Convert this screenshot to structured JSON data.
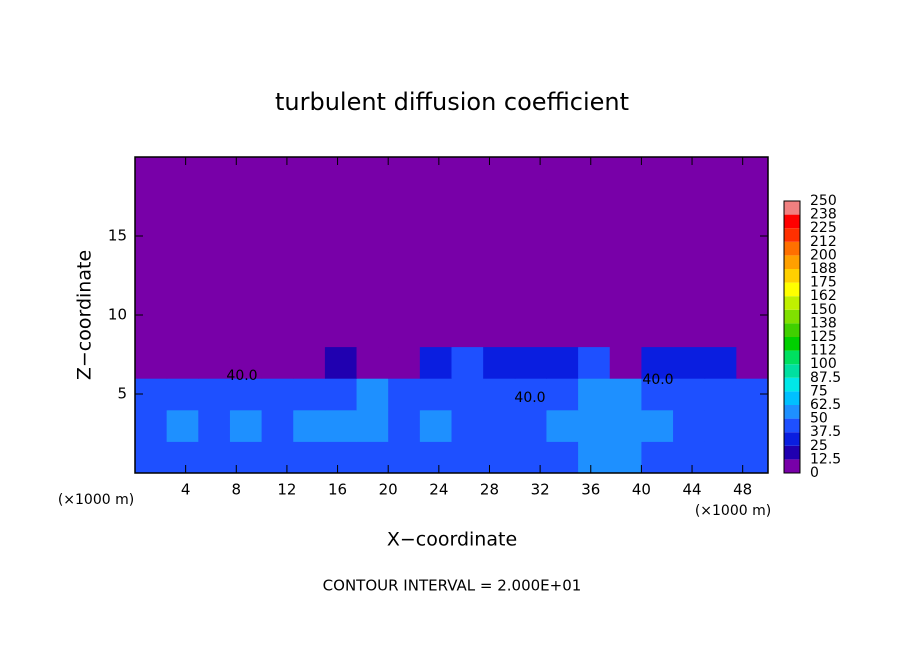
{
  "chart_data": {
    "type": "heatmap",
    "title": "turbulent diffusion coefficient",
    "x_label": "X−coordinate",
    "y_label": "Z−coordinate",
    "x_unit": "(×1000 m)",
    "y_unit": "(×1000 m)",
    "footer": "CONTOUR INTERVAL = 2.000E+01",
    "contour_label": "40.0",
    "xlim": [
      0,
      50
    ],
    "ylim": [
      0,
      20
    ],
    "xticks": [
      4,
      8,
      12,
      16,
      20,
      24,
      28,
      32,
      36,
      40,
      44,
      48
    ],
    "yticks": [
      5,
      10,
      15
    ],
    "xbins": [
      0,
      2.5,
      5,
      7.5,
      10,
      12.5,
      15,
      17.5,
      20,
      22.5,
      25,
      27.5,
      30,
      32.5,
      35,
      37.5,
      40,
      42.5,
      45,
      47.5,
      50
    ],
    "zbins": [
      0,
      2,
      4,
      6,
      8,
      10,
      12,
      14,
      16,
      18,
      20
    ],
    "values": [
      [
        40,
        45,
        45,
        40,
        40,
        45,
        45,
        40,
        45,
        45,
        40,
        40,
        45,
        45,
        50,
        55,
        45,
        40,
        40,
        45
      ],
      [
        45,
        50,
        45,
        50,
        45,
        50,
        55,
        50,
        45,
        50,
        45,
        45,
        45,
        50,
        55,
        60,
        50,
        45,
        45,
        45
      ],
      [
        40,
        40,
        40,
        40,
        40,
        40,
        45,
        50,
        45,
        40,
        45,
        40,
        40,
        40,
        50,
        55,
        40,
        45,
        40,
        40
      ],
      [
        5,
        5,
        5,
        5,
        10,
        10,
        20,
        5,
        10,
        30,
        40,
        35,
        30,
        30,
        40,
        10,
        30,
        35,
        30,
        10
      ],
      [
        0,
        0,
        0,
        0,
        0,
        0,
        0,
        0,
        0,
        0,
        0,
        0,
        0,
        0,
        0,
        0,
        0,
        0,
        0,
        0
      ],
      [
        0,
        0,
        0,
        0,
        0,
        0,
        0,
        0,
        0,
        0,
        0,
        0,
        0,
        0,
        0,
        0,
        0,
        0,
        0,
        0
      ],
      [
        0,
        0,
        0,
        0,
        0,
        0,
        0,
        0,
        0,
        0,
        0,
        0,
        0,
        0,
        0,
        0,
        0,
        0,
        0,
        0
      ],
      [
        0,
        0,
        0,
        0,
        0,
        0,
        0,
        0,
        0,
        0,
        0,
        0,
        0,
        0,
        0,
        0,
        0,
        0,
        0,
        0
      ],
      [
        0,
        0,
        0,
        0,
        0,
        0,
        0,
        0,
        0,
        0,
        0,
        0,
        0,
        0,
        0,
        0,
        0,
        0,
        0,
        0
      ],
      [
        0,
        0,
        0,
        0,
        0,
        0,
        0,
        0,
        0,
        0,
        0,
        0,
        0,
        0,
        0,
        0,
        0,
        0,
        0,
        0
      ]
    ],
    "levels": [
      0,
      12.5,
      25,
      37.5,
      50,
      62.5,
      75,
      87.5,
      100,
      {
        "value": 112.5,
        "label": "112"
      },
      125,
      {
        "value": 137.5,
        "label": "138"
      },
      150,
      {
        "value": 162.5,
        "label": "162"
      },
      175,
      {
        "value": 187.5,
        "label": "188"
      },
      200,
      {
        "value": 212.5,
        "label": "212"
      },
      225,
      {
        "value": 237.5,
        "label": "238"
      },
      250
    ],
    "colors": [
      "#7800a8",
      "#2000b0",
      "#0a1ee0",
      "#1e50ff",
      "#1e90ff",
      "#00c0ff",
      "#00e8e8",
      "#00e0a0",
      "#00e060",
      "#00d000",
      "#40d000",
      "#80e000",
      "#c0f000",
      "#ffff00",
      "#ffd000",
      "#ffa000",
      "#ff7000",
      "#ff3000",
      "#ff0000",
      "#f08080"
    ]
  }
}
